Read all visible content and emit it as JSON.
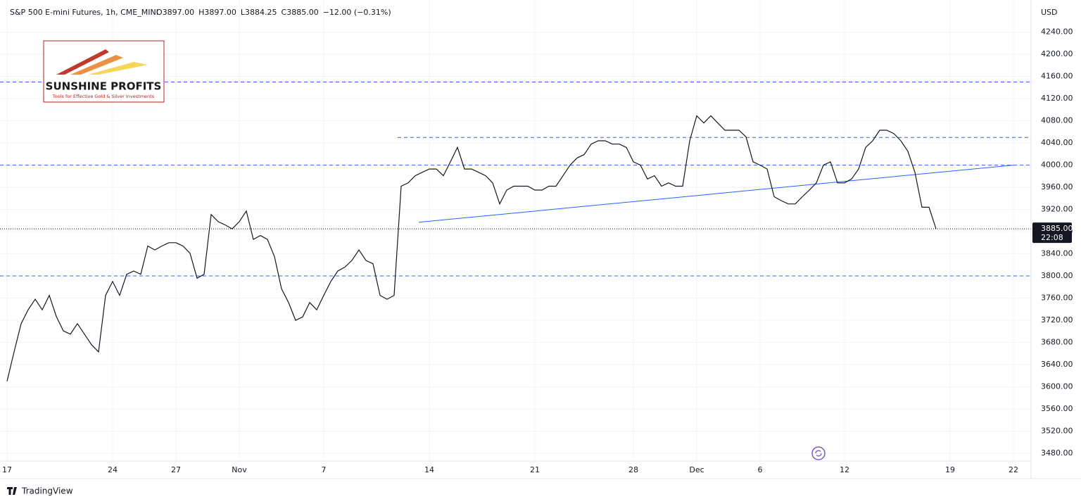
{
  "chart_data": {
    "type": "line",
    "title": "S&P 500 E-mini Futures, 1h, CME_MINI",
    "ohlc": [
      "O3897.00",
      "H3897.00",
      "L3884.25",
      "C3885.00",
      "−12.00 (−0.31%)"
    ],
    "currency": "USD",
    "color": "#131722",
    "categories": [
      "17",
      null,
      null,
      null,
      null,
      null,
      null,
      null,
      null,
      null,
      null,
      null,
      null,
      null,
      null,
      "24",
      null,
      null,
      null,
      null,
      null,
      null,
      null,
      null,
      "27",
      null,
      null,
      null,
      null,
      null,
      null,
      null,
      null,
      "Nov",
      null,
      null,
      null,
      null,
      null,
      null,
      null,
      null,
      null,
      null,
      null,
      "7",
      null,
      null,
      null,
      null,
      null,
      null,
      null,
      null,
      null,
      null,
      null,
      null,
      null,
      null,
      "14",
      null,
      null,
      null,
      null,
      null,
      null,
      null,
      null,
      null,
      null,
      null,
      null,
      null,
      null,
      "21",
      null,
      null,
      null,
      null,
      null,
      null,
      null,
      null,
      null,
      null,
      null,
      null,
      null,
      "28",
      null,
      null,
      null,
      null,
      null,
      null,
      null,
      null,
      "Dec",
      null,
      null,
      null,
      null,
      null,
      null,
      null,
      null,
      "6",
      null,
      null,
      null,
      null,
      null,
      null,
      null,
      null,
      null,
      null,
      null,
      "12",
      null,
      null,
      null,
      null,
      null,
      null,
      null,
      null,
      null,
      null,
      null,
      null,
      null,
      null,
      "19",
      null,
      null,
      null,
      null,
      null,
      null,
      null,
      null,
      "22"
    ],
    "values": [
      3610,
      3663,
      3714,
      3739,
      3758,
      3739,
      3765,
      3727,
      3701,
      3695,
      3714,
      3695,
      3676,
      3663,
      3765,
      3790,
      3765,
      3803,
      3809,
      3803,
      3854,
      3847,
      3854,
      3860,
      3860,
      3854,
      3841,
      3796,
      3803,
      3911,
      3898,
      3892,
      3885,
      3898,
      3917,
      3866,
      3873,
      3866,
      3835,
      3777,
      3752,
      3720,
      3726,
      3752,
      3739,
      3765,
      3790,
      3809,
      3816,
      3828,
      3847,
      3828,
      3822,
      3765,
      3758,
      3765,
      3962,
      3968,
      3981,
      3987,
      3993,
      3993,
      3981,
      4006,
      4032,
      3993,
      3993,
      3987,
      3981,
      3968,
      3930,
      3955,
      3962,
      3962,
      3962,
      3955,
      3955,
      3962,
      3962,
      3981,
      4000,
      4013,
      4019,
      4038,
      4044,
      4044,
      4038,
      4038,
      4032,
      4006,
      4000,
      3975,
      3981,
      3962,
      3968,
      3962,
      3962,
      4044,
      4089,
      4076,
      4089,
      4076,
      4063,
      4063,
      4063,
      4051,
      4006,
      4000,
      3993,
      3943,
      3936,
      3930,
      3930,
      3943,
      3955,
      3968,
      4000,
      4006,
      3968,
      3968,
      3975,
      3993,
      4032,
      4044,
      4063,
      4063,
      4057,
      4044,
      4025,
      3987,
      3924,
      3924,
      3885,
      null,
      null,
      null,
      null,
      null,
      null,
      null,
      null,
      null,
      null,
      null
    ],
    "ylim": [
      3466,
      4298
    ],
    "yticks": [
      {
        "value": 3480,
        "label": "3480.00"
      },
      {
        "value": 3520,
        "label": "3520.00"
      },
      {
        "value": 3560,
        "label": "3560.00"
      },
      {
        "value": 3600,
        "label": "3600.00"
      },
      {
        "value": 3640,
        "label": "3640.00"
      },
      {
        "value": 3680,
        "label": "3680.00"
      },
      {
        "value": 3720,
        "label": "3720.00"
      },
      {
        "value": 3760,
        "label": "3760.00"
      },
      {
        "value": 3800,
        "label": "3800.00"
      },
      {
        "value": 3840,
        "label": "3840.00"
      },
      {
        "value": 3880,
        "label": "3880.00"
      },
      {
        "value": 3920,
        "label": "3920.00"
      },
      {
        "value": 3960,
        "label": "3960.00"
      },
      {
        "value": 4000,
        "label": "4000.00"
      },
      {
        "value": 4040,
        "label": "4040.00"
      },
      {
        "value": 4080,
        "label": "4080.00"
      },
      {
        "value": 4120,
        "label": "4120.00"
      },
      {
        "value": 4160,
        "label": "4160.00"
      },
      {
        "value": 4200,
        "label": "4200.00"
      },
      {
        "value": 4240,
        "label": "4240.00"
      }
    ],
    "grid": true,
    "levels": [
      4150,
      4050,
      4000,
      3800
    ],
    "level_color": "#2962ff",
    "trendline": [
      3897,
      4000
    ],
    "last_price": {
      "value": 3885,
      "label": "3885.00"
    },
    "countdown": "22:08"
  },
  "logo": {
    "name": "SUNSHINE PROFITS",
    "tagline": "Tools for Effective Gold & Silver Investments"
  },
  "footer": {
    "brand": "TradingView"
  }
}
